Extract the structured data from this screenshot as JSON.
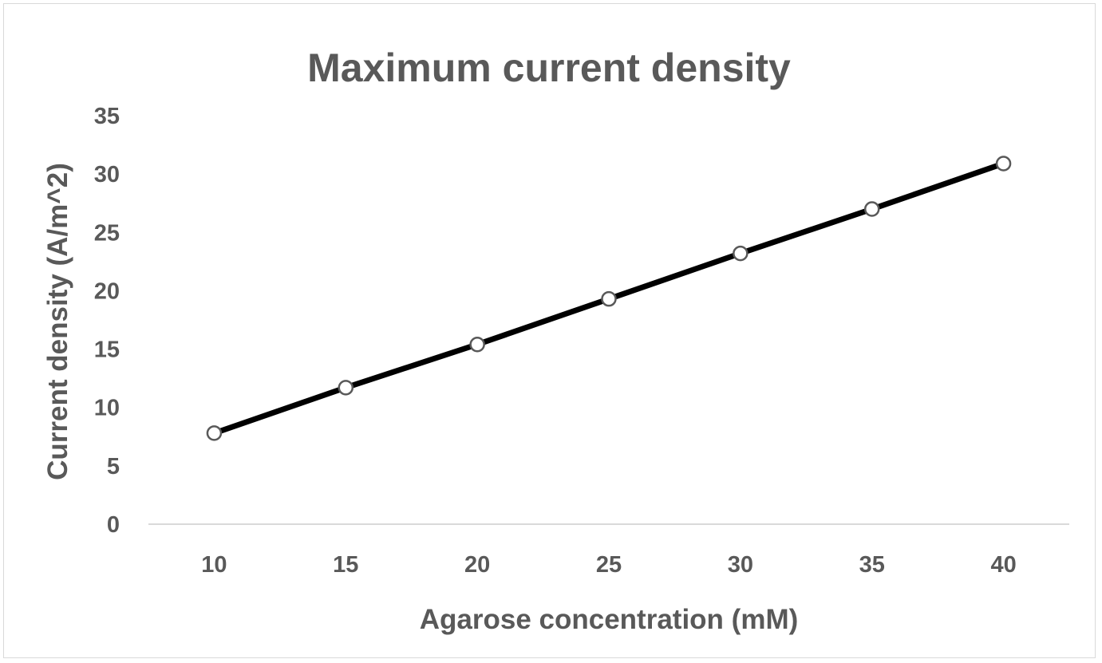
{
  "chart_data": {
    "type": "line",
    "title": "Maximum current density",
    "xlabel": "Agarose concentration (mM)",
    "ylabel": "Current density (A/m^2)",
    "categories": [
      "10",
      "15",
      "20",
      "25",
      "30",
      "35",
      "40"
    ],
    "x": [
      10,
      15,
      20,
      25,
      30,
      35,
      40
    ],
    "series": [
      {
        "values": [
          7.8,
          11.7,
          15.4,
          19.3,
          23.2,
          27.0,
          30.9
        ]
      }
    ],
    "ylim": [
      0,
      35
    ],
    "yticks": [
      "0",
      "5",
      "10",
      "15",
      "20",
      "25",
      "30",
      "35"
    ],
    "grid": false,
    "legend": "none",
    "line_color": "#000000",
    "marker_fill": "#ffffff",
    "marker_stroke": "#595959",
    "text_color": "#595959",
    "axis_color": "#d9d9d9"
  }
}
